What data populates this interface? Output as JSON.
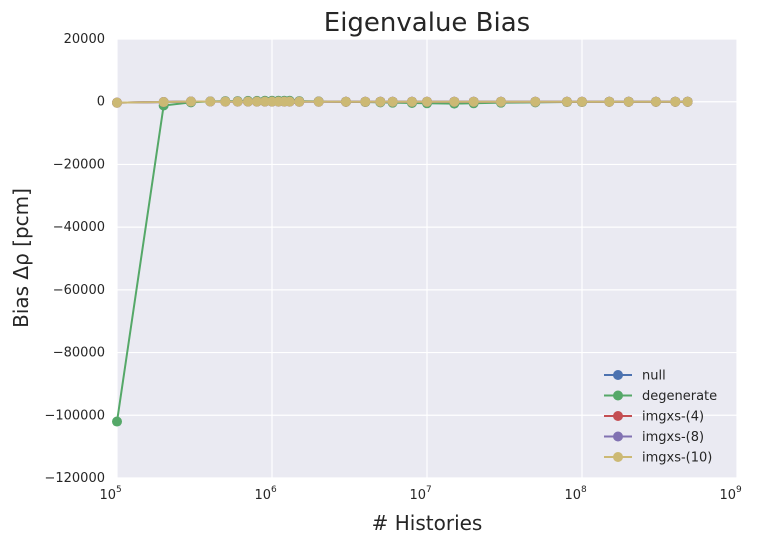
{
  "chart_data": {
    "type": "line",
    "title": "Eigenvalue Bias",
    "xlabel": "# Histories",
    "ylabel": "Bias Δρ [pcm]",
    "xscale": "log",
    "xlim": [
      100000,
      1000000000
    ],
    "ylim": [
      -120000,
      20000
    ],
    "x_ticks": [
      {
        "value": 100000,
        "base": "10",
        "exp": "5"
      },
      {
        "value": 1000000,
        "base": "10",
        "exp": "6"
      },
      {
        "value": 10000000,
        "base": "10",
        "exp": "7"
      },
      {
        "value": 100000000,
        "base": "10",
        "exp": "8"
      },
      {
        "value": 1000000000,
        "base": "10",
        "exp": "9"
      }
    ],
    "y_ticks": [
      20000,
      0,
      -20000,
      -40000,
      -60000,
      -80000,
      -100000,
      -120000
    ],
    "y_tick_labels": [
      "20000",
      "0",
      "−20000",
      "−40000",
      "−60000",
      "−80000",
      "−100000",
      "−120000"
    ],
    "grid": true,
    "legend_position": "lower-right",
    "x": [
      100000,
      200000,
      300000,
      400000,
      500000,
      600000,
      700000,
      800000,
      900000,
      1000000,
      1100000,
      1200000,
      1300000,
      1500000,
      2000000,
      3000000,
      4000000,
      5000000,
      6000000,
      8000000,
      10000000,
      15000000,
      20000000,
      30000000,
      50000000,
      80000000,
      100000000,
      150000000,
      200000000,
      300000000,
      400000000,
      480000000
    ],
    "series": [
      {
        "name": "null",
        "color": "#4c72b0",
        "values": [
          -300,
          -100,
          50,
          60,
          40,
          30,
          30,
          20,
          20,
          20,
          20,
          20,
          20,
          10,
          10,
          5,
          0,
          0,
          0,
          0,
          0,
          0,
          0,
          0,
          0,
          0,
          0,
          0,
          0,
          0,
          0,
          0
        ]
      },
      {
        "name": "degenerate",
        "color": "#55a868",
        "values": [
          -102000,
          -1200,
          -200,
          100,
          200,
          200,
          250,
          250,
          300,
          300,
          300,
          300,
          300,
          200,
          100,
          0,
          -100,
          -200,
          -300,
          -400,
          -500,
          -600,
          -500,
          -300,
          -200,
          -100,
          -100,
          0,
          0,
          0,
          0,
          0
        ]
      },
      {
        "name": "imgxs-(4)",
        "color": "#c44e52",
        "values": [
          -300,
          -100,
          50,
          60,
          40,
          30,
          30,
          20,
          20,
          20,
          20,
          20,
          20,
          10,
          10,
          5,
          0,
          0,
          0,
          0,
          0,
          0,
          0,
          0,
          0,
          0,
          0,
          0,
          0,
          0,
          0,
          0
        ]
      },
      {
        "name": "imgxs-(8)",
        "color": "#8172b2",
        "values": [
          -300,
          -100,
          50,
          60,
          40,
          30,
          30,
          20,
          20,
          20,
          20,
          20,
          20,
          10,
          10,
          5,
          0,
          0,
          0,
          0,
          0,
          0,
          0,
          0,
          0,
          0,
          0,
          0,
          0,
          0,
          0,
          0
        ]
      },
      {
        "name": "imgxs-(10)",
        "color": "#ccb974",
        "values": [
          -300,
          -100,
          50,
          60,
          40,
          30,
          30,
          20,
          20,
          20,
          20,
          20,
          20,
          10,
          10,
          5,
          0,
          0,
          0,
          0,
          0,
          0,
          0,
          0,
          0,
          0,
          0,
          0,
          0,
          0,
          0,
          0
        ]
      }
    ]
  }
}
